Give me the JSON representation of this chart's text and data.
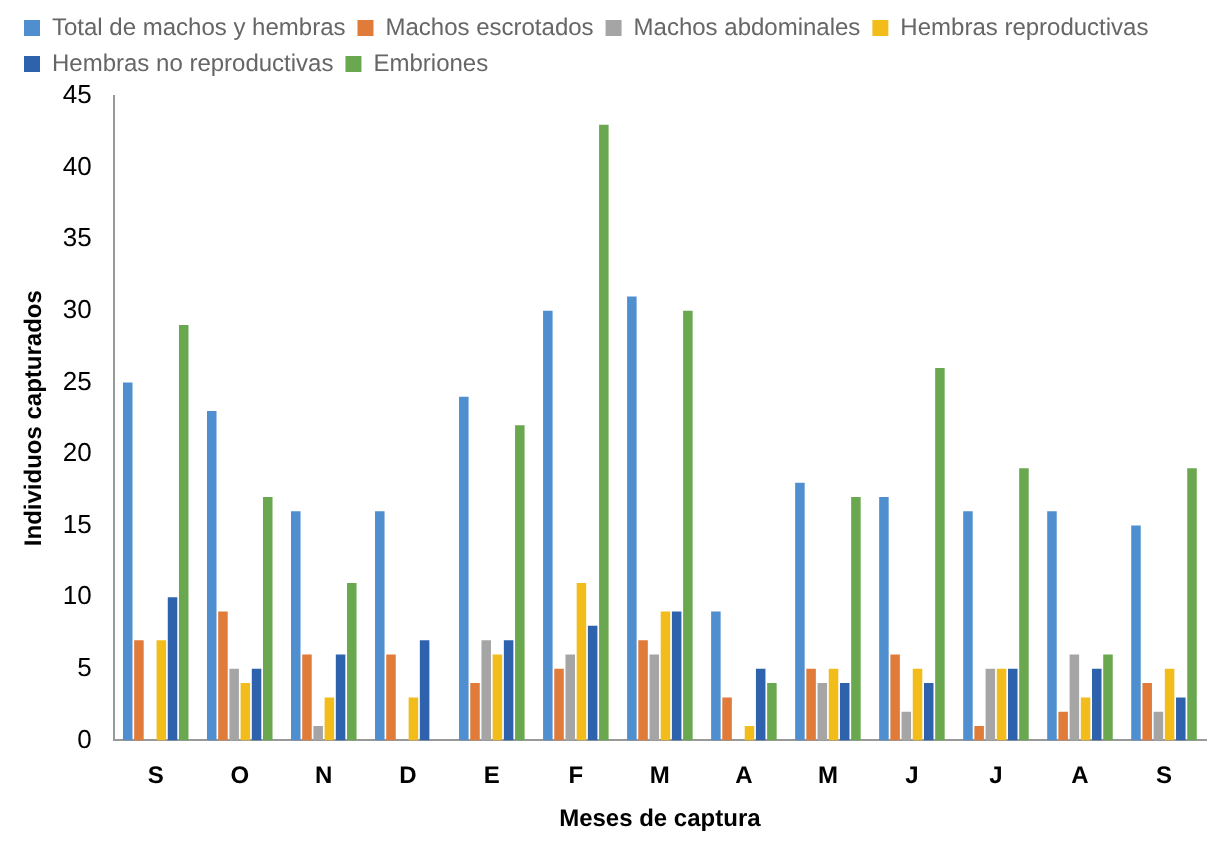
{
  "chart_data": {
    "type": "bar",
    "xlabel": "Meses de captura",
    "ylabel": "Individuos capturados",
    "categories": [
      "S",
      "O",
      "N",
      "D",
      "E",
      "F",
      "M",
      "A",
      "M",
      "J",
      "J",
      "A",
      "S"
    ],
    "series": [
      {
        "name": "Total de machos y hembras",
        "color": "#4f8fd0",
        "values": [
          25,
          23,
          16,
          16,
          24,
          30,
          31,
          9,
          18,
          17,
          16,
          16,
          15
        ]
      },
      {
        "name": "Machos escrotados",
        "color": "#e07b39",
        "values": [
          7,
          9,
          6,
          6,
          4,
          5,
          7,
          3,
          5,
          6,
          1,
          2,
          4
        ]
      },
      {
        "name": "Machos abdominales",
        "color": "#a5a5a5",
        "values": [
          0,
          5,
          1,
          0,
          7,
          6,
          6,
          0,
          4,
          2,
          5,
          6,
          2
        ]
      },
      {
        "name": "Hembras reproductivas",
        "color": "#f2bd1b",
        "values": [
          7,
          4,
          3,
          3,
          6,
          11,
          9,
          1,
          5,
          5,
          5,
          3,
          5
        ]
      },
      {
        "name": "Hembras no reproductivas",
        "color": "#2e62ad",
        "values": [
          10,
          5,
          6,
          7,
          7,
          8,
          9,
          5,
          4,
          4,
          5,
          5,
          3
        ]
      },
      {
        "name": "Embriones",
        "color": "#6aa84f",
        "values": [
          29,
          17,
          11,
          0,
          22,
          43,
          30,
          4,
          17,
          26,
          19,
          6,
          19
        ]
      }
    ],
    "ylim": [
      0,
      45
    ],
    "yticks": [
      0,
      5,
      10,
      15,
      20,
      25,
      30,
      35,
      40,
      45
    ],
    "grid": false,
    "legend": "top"
  }
}
